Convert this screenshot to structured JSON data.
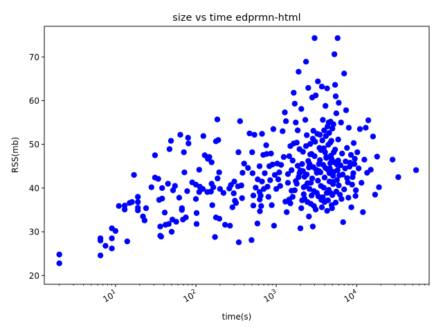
{
  "chart_data": {
    "type": "scatter",
    "title": "size vs time edprmn-html",
    "xlabel": "time(s)",
    "ylabel": "RSS(mb)",
    "xscale": "log",
    "xlim": [
      1.3,
      80000
    ],
    "ylim": [
      18,
      77
    ],
    "grid": false,
    "legend": "none",
    "marker_color": "#0000ff",
    "x_ticks": [
      {
        "value": 10,
        "label": "10",
        "exp": "1"
      },
      {
        "value": 100,
        "label": "10",
        "exp": "2"
      },
      {
        "value": 1000,
        "label": "10",
        "exp": "3"
      },
      {
        "value": 10000,
        "label": "10",
        "exp": "4"
      }
    ],
    "y_ticks": [
      20,
      30,
      40,
      50,
      60,
      70
    ],
    "points": [
      [
        2,
        24.8
      ],
      [
        2,
        22.8
      ],
      [
        6.5,
        28.5
      ],
      [
        6.5,
        28
      ],
      [
        6.5,
        24.6
      ],
      [
        7.5,
        26.8
      ],
      [
        9,
        30.8
      ],
      [
        9,
        28.5
      ],
      [
        9,
        26.2
      ],
      [
        10,
        30.2
      ],
      [
        11,
        35.9
      ],
      [
        13,
        36
      ],
      [
        13,
        35.1
      ],
      [
        14,
        27.8
      ],
      [
        15,
        36.6
      ],
      [
        16,
        36.8
      ],
      [
        17,
        43
      ],
      [
        19,
        38
      ],
      [
        19,
        36.8
      ],
      [
        19,
        35.5
      ],
      [
        19,
        34.9
      ],
      [
        22,
        33.5
      ],
      [
        23,
        32.6
      ],
      [
        24,
        35.4
      ],
      [
        28,
        40.2
      ],
      [
        31,
        47.5
      ],
      [
        31,
        42.4
      ],
      [
        34,
        42.1
      ],
      [
        35,
        37.3
      ],
      [
        36,
        31.2
      ],
      [
        36,
        29.1
      ],
      [
        37,
        28.9
      ],
      [
        38,
        37.6
      ],
      [
        38,
        40
      ],
      [
        41,
        34.4
      ],
      [
        42,
        31.6
      ],
      [
        45,
        41
      ],
      [
        46,
        31.8
      ],
      [
        47,
        48.9
      ],
      [
        49,
        50.8
      ],
      [
        50,
        30
      ],
      [
        51,
        32.8
      ],
      [
        52,
        39.5
      ],
      [
        55,
        40.5
      ],
      [
        57,
        32.3
      ],
      [
        62,
        37.8
      ],
      [
        64,
        52.2
      ],
      [
        67,
        35.4
      ],
      [
        67,
        35
      ],
      [
        69,
        32.8
      ],
      [
        71,
        48.2
      ],
      [
        72,
        43.6
      ],
      [
        75,
        33.3
      ],
      [
        78,
        39.3
      ],
      [
        80,
        51.5
      ],
      [
        81,
        50.2
      ],
      [
        90,
        41.3
      ],
      [
        100,
        40.8
      ],
      [
        100,
        37.5
      ],
      [
        102,
        34.3
      ],
      [
        102,
        31.8
      ],
      [
        110,
        44.2
      ],
      [
        110,
        39.1
      ],
      [
        112,
        40.3
      ],
      [
        122,
        39.8
      ],
      [
        124,
        51.9
      ],
      [
        129,
        47.5
      ],
      [
        139,
        39.1
      ],
      [
        141,
        46.7
      ],
      [
        147,
        47.1
      ],
      [
        154,
        39.2
      ],
      [
        157,
        45.9
      ],
      [
        157,
        41
      ],
      [
        160,
        36.1
      ],
      [
        165,
        40.2
      ],
      [
        173,
        28.8
      ],
      [
        178,
        50.7
      ],
      [
        178,
        33.3
      ],
      [
        185,
        55.7
      ],
      [
        186,
        42.2
      ],
      [
        190,
        51
      ],
      [
        195,
        43.6
      ],
      [
        196,
        33
      ],
      [
        200,
        39.8
      ],
      [
        221,
        38.9
      ],
      [
        231,
        31.6
      ],
      [
        261,
        39.9
      ],
      [
        266,
        31.4
      ],
      [
        273,
        40.7
      ],
      [
        285,
        35.6
      ],
      [
        296,
        38.8
      ],
      [
        301,
        41.5
      ],
      [
        306,
        37.1
      ],
      [
        316,
        36.6
      ],
      [
        335,
        40.4
      ],
      [
        339,
        48.2
      ],
      [
        342,
        27.6
      ],
      [
        355,
        55.3
      ],
      [
        368,
        40.6
      ],
      [
        376,
        37.7
      ],
      [
        381,
        43.5
      ],
      [
        399,
        45.6
      ],
      [
        446,
        44.6
      ],
      [
        465,
        52.5
      ],
      [
        493,
        28.1
      ],
      [
        502,
        48.2
      ],
      [
        508,
        43.4
      ],
      [
        519,
        38.3
      ],
      [
        519,
        36
      ],
      [
        536,
        52.2
      ],
      [
        555,
        40.1
      ],
      [
        583,
        31.9
      ],
      [
        588,
        42
      ],
      [
        620,
        45
      ],
      [
        620,
        39.1
      ],
      [
        624,
        37.4
      ],
      [
        627,
        34.7
      ],
      [
        640,
        38.3
      ],
      [
        650,
        35.9
      ],
      [
        665,
        52.4
      ],
      [
        665,
        41.5
      ],
      [
        690,
        47.6
      ],
      [
        700,
        39.8
      ],
      [
        720,
        43.4
      ],
      [
        750,
        49.8
      ],
      [
        760,
        47.8
      ],
      [
        780,
        40.3
      ],
      [
        800,
        38
      ],
      [
        820,
        45
      ],
      [
        840,
        41.8
      ],
      [
        860,
        47.9
      ],
      [
        880,
        36.1
      ],
      [
        900,
        45.4
      ],
      [
        920,
        53.5
      ],
      [
        940,
        31.4
      ],
      [
        960,
        43
      ],
      [
        1000,
        39.8
      ],
      [
        1030,
        45.6
      ],
      [
        1060,
        42
      ],
      [
        1090,
        43.6
      ],
      [
        1120,
        40.5
      ],
      [
        1150,
        45.3
      ],
      [
        1200,
        53
      ],
      [
        1240,
        47.1
      ],
      [
        1280,
        57.3
      ],
      [
        1320,
        55.3
      ],
      [
        1350,
        34.5
      ],
      [
        1400,
        41.2
      ],
      [
        1450,
        37.4
      ],
      [
        1500,
        49.6
      ],
      [
        1550,
        44.1
      ],
      [
        1600,
        46.3
      ],
      [
        1650,
        61.8
      ],
      [
        1700,
        59.3
      ],
      [
        1750,
        55
      ],
      [
        1800,
        50.4
      ],
      [
        1850,
        53.2
      ],
      [
        1900,
        66.6
      ],
      [
        1950,
        43.4
      ],
      [
        2000,
        30.8
      ],
      [
        2050,
        58.1
      ],
      [
        2100,
        45.5
      ],
      [
        2150,
        48.3
      ],
      [
        2200,
        40.2
      ],
      [
        2250,
        42.6
      ],
      [
        2300,
        55.6
      ],
      [
        2350,
        68.9
      ],
      [
        2400,
        52.1
      ],
      [
        2450,
        36.8
      ],
      [
        2500,
        62.9
      ],
      [
        2550,
        33.5
      ],
      [
        2600,
        45.5
      ],
      [
        2650,
        50.1
      ],
      [
        2700,
        41.2
      ],
      [
        2750,
        47.8
      ],
      [
        2800,
        60.7
      ],
      [
        2850,
        31.2
      ],
      [
        2900,
        53.1
      ],
      [
        2950,
        39.3
      ],
      [
        3000,
        74.3
      ],
      [
        3100,
        61.2
      ],
      [
        3200,
        43.5
      ],
      [
        3300,
        64.4
      ],
      [
        3400,
        45.5
      ],
      [
        3500,
        52.2
      ],
      [
        3600,
        40.5
      ],
      [
        3700,
        63.2
      ],
      [
        3800,
        55.6
      ],
      [
        3900,
        49.1
      ],
      [
        4000,
        36.8
      ],
      [
        4100,
        58.8
      ],
      [
        4200,
        47.1
      ],
      [
        4300,
        62.8
      ],
      [
        4400,
        44.2
      ],
      [
        4500,
        55
      ],
      [
        4600,
        41.5
      ],
      [
        4700,
        50.4
      ],
      [
        4800,
        38.8
      ],
      [
        4900,
        46.6
      ],
      [
        5000,
        53.6
      ],
      [
        5100,
        42.8
      ],
      [
        5200,
        48.2
      ],
      [
        5300,
        70.6
      ],
      [
        5400,
        63.6
      ],
      [
        5500,
        61
      ],
      [
        5600,
        57.1
      ],
      [
        5700,
        45.4
      ],
      [
        5800,
        74.3
      ],
      [
        5900,
        51.1
      ],
      [
        6000,
        59.5
      ],
      [
        6200,
        38.5
      ],
      [
        6400,
        55
      ],
      [
        6600,
        47.9
      ],
      [
        6800,
        32.2
      ],
      [
        7000,
        66.2
      ],
      [
        7200,
        44.5
      ],
      [
        7400,
        57.8
      ],
      [
        7600,
        49.2
      ],
      [
        7800,
        41.3
      ],
      [
        8000,
        53.8
      ],
      [
        8300,
        45.8
      ],
      [
        8600,
        35.6
      ],
      [
        8900,
        42.5
      ],
      [
        9200,
        50.3
      ],
      [
        9500,
        46.7
      ],
      [
        9800,
        39.5
      ],
      [
        10200,
        48.2
      ],
      [
        10600,
        44.5
      ],
      [
        11000,
        53.5
      ],
      [
        11500,
        41.2
      ],
      [
        12000,
        34.5
      ],
      [
        12500,
        46.5
      ],
      [
        13000,
        53.8
      ],
      [
        13500,
        43.5
      ],
      [
        14000,
        55.5
      ],
      [
        15000,
        44.2
      ],
      [
        16000,
        51.8
      ],
      [
        17000,
        38.5
      ],
      [
        18000,
        47.2
      ],
      [
        19000,
        40.2
      ],
      [
        28000,
        46.5
      ],
      [
        33000,
        42.5
      ],
      [
        55000,
        44.1
      ],
      [
        1500,
        36.5
      ],
      [
        1600,
        38
      ],
      [
        1700,
        39.5
      ],
      [
        1800,
        41
      ],
      [
        1900,
        42.5
      ],
      [
        2000,
        44
      ],
      [
        2100,
        37.2
      ],
      [
        2200,
        38.6
      ],
      [
        2300,
        40.4
      ],
      [
        2400,
        43.1
      ],
      [
        2500,
        46.2
      ],
      [
        2600,
        39.8
      ],
      [
        2700,
        36.4
      ],
      [
        2800,
        42.2
      ],
      [
        2900,
        44.8
      ],
      [
        3000,
        47.3
      ],
      [
        3100,
        35.1
      ],
      [
        3200,
        38.9
      ],
      [
        3300,
        41.7
      ],
      [
        3400,
        43.9
      ],
      [
        3500,
        46.4
      ],
      [
        3600,
        48.7
      ],
      [
        3700,
        35.6
      ],
      [
        3800,
        37.9
      ],
      [
        3900,
        40.1
      ],
      [
        4000,
        42.4
      ],
      [
        4100,
        44.6
      ],
      [
        4200,
        46.9
      ],
      [
        4300,
        34.8
      ],
      [
        4400,
        37.2
      ],
      [
        4500,
        39.6
      ],
      [
        4600,
        43.4
      ],
      [
        4700,
        45.7
      ],
      [
        4800,
        47.4
      ],
      [
        4900,
        36.1
      ],
      [
        5000,
        38.4
      ],
      [
        5100,
        40.9
      ],
      [
        5200,
        43.7
      ],
      [
        5300,
        45.9
      ],
      [
        5400,
        48.8
      ],
      [
        5500,
        36.7
      ],
      [
        5600,
        39.2
      ],
      [
        5700,
        41.8
      ],
      [
        5800,
        44.1
      ],
      [
        5900,
        46.3
      ],
      [
        6000,
        40.6
      ],
      [
        6100,
        42.9
      ],
      [
        6300,
        45.2
      ],
      [
        6500,
        37.5
      ],
      [
        6700,
        43.1
      ],
      [
        7000,
        39.7
      ],
      [
        7300,
        46.1
      ],
      [
        7600,
        42.3
      ],
      [
        7900,
        37.8
      ],
      [
        8200,
        44.9
      ],
      [
        8500,
        47.6
      ],
      [
        8800,
        40.8
      ],
      [
        9100,
        43.4
      ],
      [
        9400,
        45.5
      ],
      [
        9700,
        38.2
      ],
      [
        1300,
        36.9
      ],
      [
        1400,
        43.2
      ],
      [
        1450,
        47.3
      ],
      [
        1550,
        39.4
      ],
      [
        1650,
        50.2
      ],
      [
        1750,
        41.6
      ],
      [
        1850,
        45.1
      ],
      [
        1950,
        48.9
      ],
      [
        2050,
        35.4
      ],
      [
        2150,
        43.9
      ],
      [
        2250,
        37.6
      ],
      [
        2350,
        49.6
      ],
      [
        2450,
        41.1
      ],
      [
        2550,
        44.7
      ],
      [
        2650,
        47.7
      ],
      [
        2750,
        38.3
      ],
      [
        2850,
        51.3
      ],
      [
        2950,
        35.9
      ],
      [
        3050,
        50.6
      ],
      [
        3150,
        44.2
      ],
      [
        3250,
        52.4
      ],
      [
        3350,
        38.1
      ],
      [
        3450,
        49.2
      ],
      [
        3550,
        43.6
      ],
      [
        3650,
        37.3
      ],
      [
        3750,
        50.9
      ],
      [
        3850,
        45.3
      ],
      [
        3950,
        53.2
      ],
      [
        4050,
        48.2
      ],
      [
        4150,
        51.9
      ],
      [
        4250,
        38.9
      ],
      [
        4350,
        54.1
      ],
      [
        4450,
        49.9
      ],
      [
        4550,
        52.6
      ],
      [
        4650,
        44.5
      ],
      [
        4750,
        55.2
      ],
      [
        4850,
        50.8
      ],
      [
        4950,
        35.4
      ],
      [
        5050,
        41.4
      ],
      [
        5150,
        54.6
      ]
    ]
  }
}
